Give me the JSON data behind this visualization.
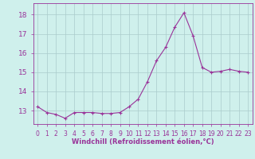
{
  "x": [
    0,
    1,
    2,
    3,
    4,
    5,
    6,
    7,
    8,
    9,
    10,
    11,
    12,
    13,
    14,
    15,
    16,
    17,
    18,
    19,
    20,
    21,
    22,
    23
  ],
  "y": [
    13.2,
    12.9,
    12.8,
    12.6,
    12.9,
    12.9,
    12.9,
    12.85,
    12.85,
    12.9,
    13.2,
    13.6,
    14.5,
    15.6,
    16.3,
    17.35,
    18.1,
    16.9,
    15.25,
    15.0,
    15.05,
    15.15,
    15.05,
    15.0
  ],
  "line_color": "#993399",
  "marker": "+",
  "bg_color": "#cff0ec",
  "grid_color": "#aacccc",
  "xlabel": "Windchill (Refroidissement éolien,°C)",
  "xlim": [
    -0.5,
    23.5
  ],
  "ylim": [
    12.3,
    18.6
  ],
  "yticks": [
    13,
    14,
    15,
    16,
    17,
    18
  ],
  "xticks": [
    0,
    1,
    2,
    3,
    4,
    5,
    6,
    7,
    8,
    9,
    10,
    11,
    12,
    13,
    14,
    15,
    16,
    17,
    18,
    19,
    20,
    21,
    22,
    23
  ]
}
